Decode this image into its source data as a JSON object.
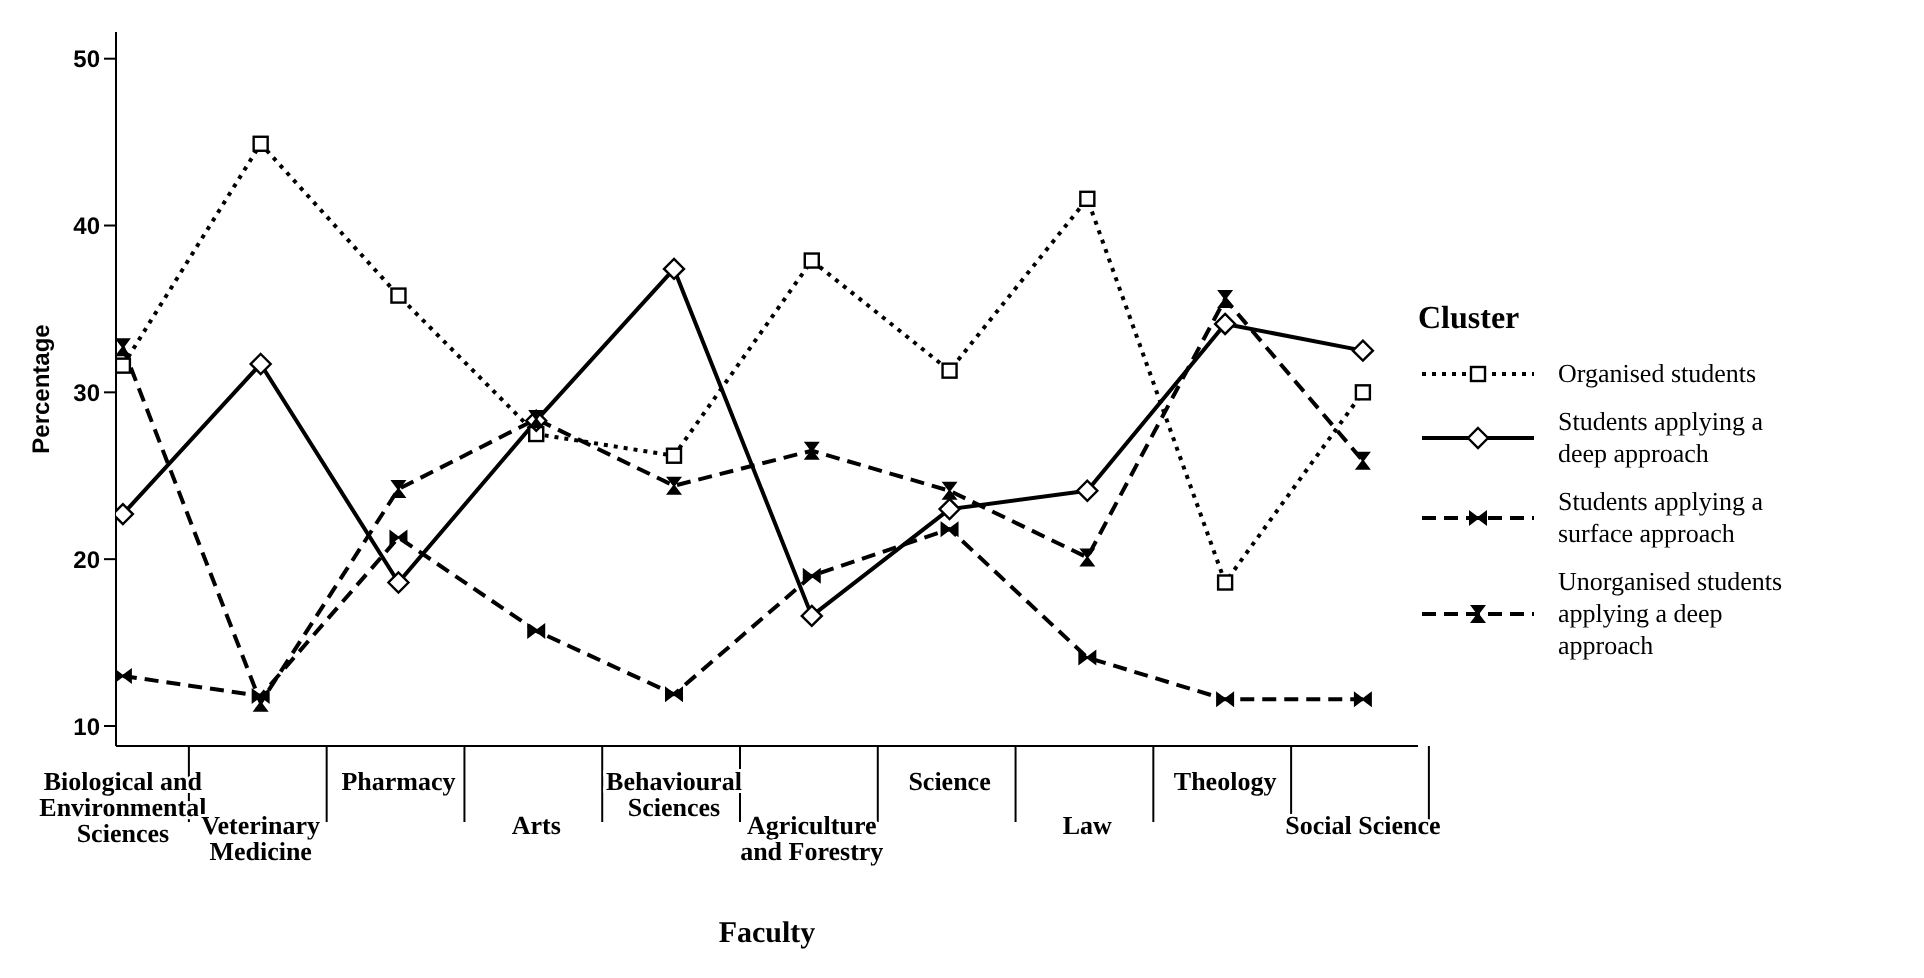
{
  "chart_data": {
    "type": "line",
    "xlabel": "Faculty",
    "ylabel": "Percentage",
    "legend_title": "Cluster",
    "categories": [
      "Biological and Environmental Sciences",
      "Veterinary Medicine",
      "Pharmacy",
      "Arts",
      "Behavioural Sciences",
      "Agriculture and Forestry",
      "Science",
      "Law",
      "Theology",
      "Social Science"
    ],
    "series": [
      {
        "name": "Organised students",
        "color": "#000000",
        "marker": "square",
        "line_style": "dotted",
        "values": [
          31.6,
          44.9,
          35.8,
          27.5,
          26.2,
          37.9,
          31.3,
          41.6,
          18.6,
          30.0
        ]
      },
      {
        "name": "Students applying a deep approach",
        "color": "#000000",
        "marker": "diamond",
        "line_style": "solid",
        "values": [
          22.7,
          31.7,
          18.6,
          28.3,
          37.4,
          16.6,
          23.0,
          24.1,
          34.1,
          32.5
        ]
      },
      {
        "name": "Students applying a surface approach",
        "color": "#000000",
        "marker": "diamond",
        "line_style": "dashed",
        "values": [
          13.0,
          11.8,
          21.3,
          15.7,
          11.9,
          19.0,
          21.8,
          14.1,
          11.6,
          11.6
        ]
      },
      {
        "name": "Unorganised students applying a deep approach",
        "color": "#000000",
        "marker": "diamond",
        "line_style": "dashed",
        "values": [
          32.7,
          11.4,
          24.2,
          28.4,
          24.4,
          26.5,
          24.1,
          20.1,
          35.6,
          25.9
        ]
      }
    ],
    "ylim": [
      8.8,
      51.6
    ],
    "yticks": [
      10,
      20,
      30,
      40,
      50
    ],
    "grid": false,
    "legend": "right"
  }
}
